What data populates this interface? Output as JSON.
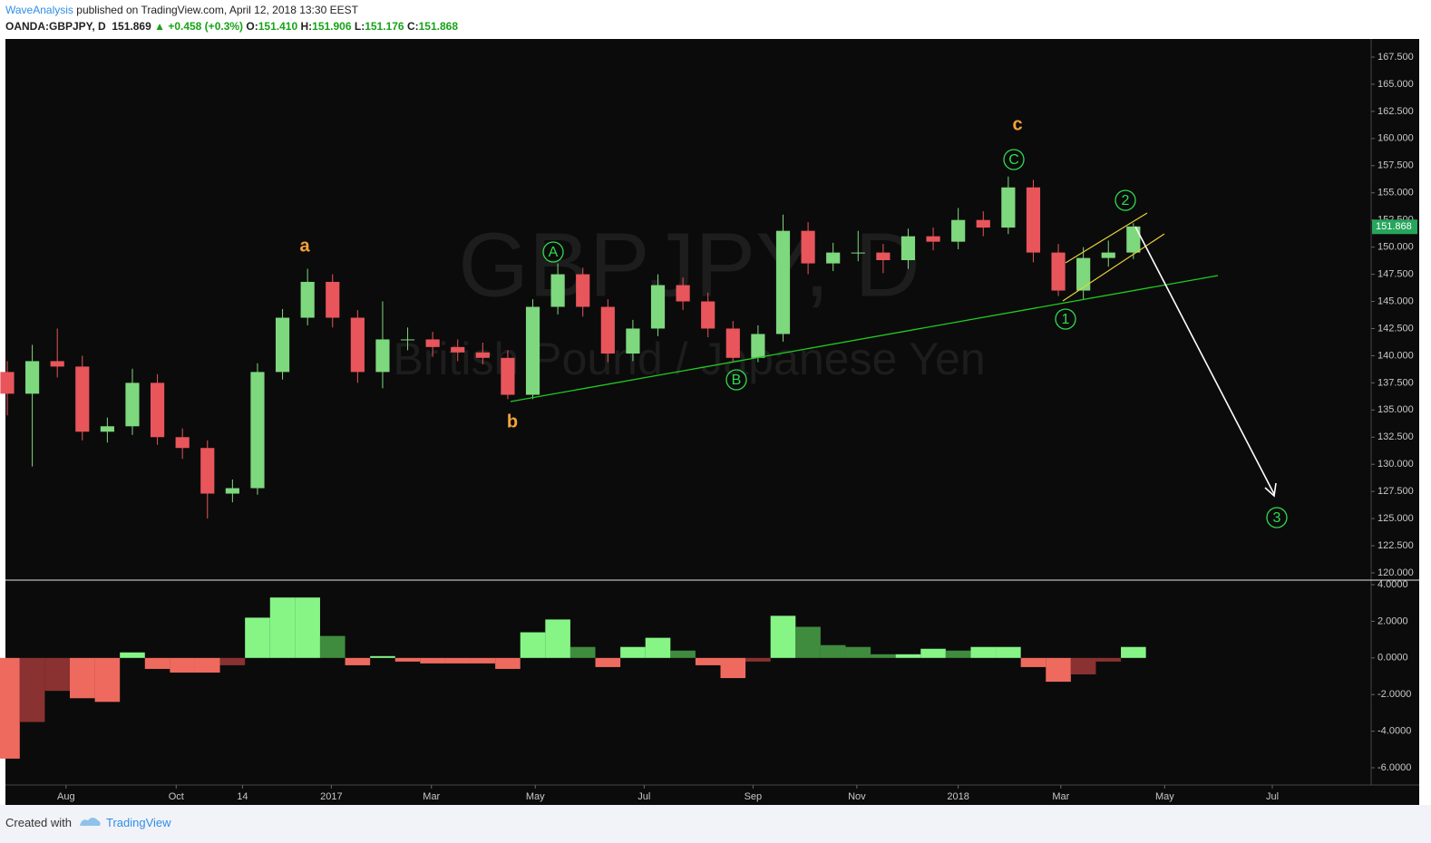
{
  "header": {
    "author": "WaveAnalysis",
    "published": "published on TradingView.com, April 12, 2018 13:30 EEST",
    "symbol": "OANDA:GBPJPY, D",
    "last": "151.869",
    "change": "+0.458 (+0.3%)",
    "o_label": "O:",
    "open": "151.410",
    "h_label": "H:",
    "high": "151.906",
    "l_label": "L:",
    "low": "151.176",
    "c_label": "C:",
    "close": "151.868"
  },
  "watermark": {
    "title": "GBPJPY, D",
    "subtitle": "British Pound / Japanese Yen"
  },
  "annotations": {
    "a": "a",
    "b": "b",
    "c": "c",
    "A": "A",
    "B": "B",
    "C": "C",
    "w1": "1",
    "w2": "2",
    "w3": "3"
  },
  "footer": {
    "created": "Created with",
    "brand": "TradingView"
  },
  "chart_data": [
    {
      "type": "candlestick",
      "x": [
        0,
        2,
        4,
        6,
        8,
        10,
        12,
        14,
        16,
        18,
        20,
        22,
        24,
        26,
        28,
        30,
        32,
        34,
        36,
        38,
        40,
        42,
        44,
        46,
        48,
        50,
        52,
        54,
        56,
        58,
        60,
        62,
        64,
        66,
        68,
        70,
        72,
        74,
        76,
        78,
        80,
        82,
        84,
        86,
        88,
        90
      ],
      "open": [
        138.5,
        136.5,
        139.5,
        139,
        133,
        133.5,
        137.5,
        132.5,
        131.5,
        127.3,
        127.8,
        138.5,
        143.5,
        146.8,
        143.5,
        138.5,
        141.5,
        141.5,
        140.8,
        140.3,
        139.8,
        136.4,
        144.5,
        147.5,
        144.5,
        140.2,
        142.5,
        146.5,
        145,
        142.5,
        139.8,
        142,
        151.5,
        148.5,
        149.5,
        149.5,
        148.8,
        151,
        150.5,
        152.5,
        151.8,
        155.5,
        149.5,
        146,
        149,
        149.5
      ],
      "high": [
        139.5,
        141,
        142.5,
        140,
        134.3,
        138.8,
        138.3,
        133.3,
        132.2,
        128.6,
        139.3,
        144.3,
        148,
        147.5,
        144.2,
        145,
        142.6,
        142.2,
        141.5,
        141.2,
        140.5,
        145.2,
        148.5,
        148.1,
        145.2,
        143.3,
        147.5,
        147.2,
        145.8,
        143.2,
        142.8,
        153,
        152.3,
        150.4,
        151.5,
        150.3,
        151.7,
        151.8,
        153.6,
        153.3,
        156.5,
        156.2,
        150.3,
        150,
        150.6,
        152.2
      ],
      "low": [
        134.5,
        129.8,
        138,
        132.2,
        132,
        132.7,
        131.8,
        130.5,
        125,
        126.5,
        127.2,
        137.8,
        142.8,
        142.6,
        137.5,
        137,
        140.5,
        139.9,
        139.5,
        139.2,
        136,
        136,
        143.8,
        143.6,
        139.4,
        139.5,
        141.8,
        144.2,
        141.7,
        139.5,
        139.4,
        141.3,
        147.5,
        147.8,
        148.7,
        147.6,
        148,
        149.7,
        149.8,
        151,
        151.2,
        148.6,
        145.5,
        145.2,
        148.2,
        148.9
      ],
      "close": [
        136.5,
        139.5,
        139,
        133,
        133.5,
        137.5,
        132.5,
        131.5,
        127.3,
        127.8,
        138.5,
        143.5,
        146.8,
        143.5,
        138.5,
        141.5,
        141.5,
        140.8,
        140.3,
        139.8,
        136.4,
        144.5,
        147.5,
        144.5,
        140.2,
        142.5,
        146.5,
        145,
        142.5,
        139.8,
        142,
        151.5,
        148.5,
        149.5,
        149.5,
        148.8,
        151,
        150.5,
        152.5,
        151.8,
        155.5,
        149.5,
        146,
        149,
        149.5,
        151.9
      ],
      "up_color": "#7ed87e",
      "down_color": "#e8555b",
      "xlim": [
        0,
        109
      ],
      "ylim": [
        119.33,
        169.17
      ],
      "yticks": [
        {
          "value": 120,
          "label": "120.000"
        },
        {
          "value": 122.5,
          "label": "122.500"
        },
        {
          "value": 125,
          "label": "125.000"
        },
        {
          "value": 127.5,
          "label": "127.500"
        },
        {
          "value": 130,
          "label": "130.000"
        },
        {
          "value": 132.5,
          "label": "132.500"
        },
        {
          "value": 135,
          "label": "135.000"
        },
        {
          "value": 137.5,
          "label": "137.500"
        },
        {
          "value": 140,
          "label": "140.000"
        },
        {
          "value": 142.5,
          "label": "142.500"
        },
        {
          "value": 145,
          "label": "145.000"
        },
        {
          "value": 147.5,
          "label": "147.500"
        },
        {
          "value": 150,
          "label": "150.000"
        },
        {
          "value": 152.5,
          "label": "152.500"
        },
        {
          "value": 155,
          "label": "155.000"
        },
        {
          "value": 157.5,
          "label": "157.500"
        },
        {
          "value": 160,
          "label": "160.000"
        },
        {
          "value": 162.5,
          "label": "162.500"
        },
        {
          "value": 165,
          "label": "165.000"
        },
        {
          "value": 167.5,
          "label": "167.500"
        }
      ],
      "price_tag": {
        "value": 151.868,
        "label": "151.868",
        "color": "#26a65b"
      }
    },
    {
      "type": "histogram",
      "x": [
        0,
        2,
        4,
        6,
        8,
        10,
        12,
        14,
        16,
        18,
        20,
        22,
        24,
        26,
        28,
        30,
        32,
        34,
        36,
        38,
        40,
        42,
        44,
        46,
        48,
        50,
        52,
        54,
        56,
        58,
        60,
        62,
        64,
        66,
        68,
        70,
        72,
        74,
        76,
        78,
        80,
        82,
        84,
        86,
        88,
        90
      ],
      "values": [
        -5.5,
        -3.5,
        -1.8,
        -2.2,
        -2.4,
        0.3,
        -0.6,
        -0.8,
        -0.8,
        -0.4,
        2.2,
        3.3,
        3.3,
        1.2,
        -0.4,
        0.1,
        -0.2,
        -0.3,
        -0.3,
        -0.3,
        -0.6,
        1.4,
        2.1,
        0.6,
        -0.5,
        0.6,
        1.1,
        0.4,
        -0.4,
        -1.1,
        -0.2,
        2.3,
        1.7,
        0.7,
        0.6,
        0.2,
        0.2,
        0.5,
        0.4,
        0.6,
        0.6,
        -0.5,
        -1.3,
        -0.9,
        -0.2,
        0.6
      ],
      "colors": {
        "pos_up": "#86f586",
        "pos_down": "#3f8c3f",
        "neg_down": "#ef6a5e",
        "neg_up": "#8a3131"
      },
      "xlim": [
        0,
        109
      ],
      "ylim": [
        -6.94,
        4.2
      ],
      "yticks": [
        {
          "value": 4,
          "label": "4.0000"
        },
        {
          "value": 2,
          "label": "2.0000"
        },
        {
          "value": 0,
          "label": "0.0000"
        },
        {
          "value": -2,
          "label": "-2.0000"
        },
        {
          "value": -4,
          "label": "-4.0000"
        },
        {
          "value": -6,
          "label": "-6.0000"
        }
      ],
      "xticks": [
        {
          "value": 4.7,
          "label": "Aug"
        },
        {
          "value": 13.5,
          "label": "Oct"
        },
        {
          "value": 18.8,
          "label": "14"
        },
        {
          "value": 25.9,
          "label": "2017"
        },
        {
          "value": 33.9,
          "label": "Mar"
        },
        {
          "value": 42.2,
          "label": "May"
        },
        {
          "value": 50.9,
          "label": "Jul"
        },
        {
          "value": 59.6,
          "label": "Sep"
        },
        {
          "value": 67.9,
          "label": "Nov"
        },
        {
          "value": 76,
          "label": "2018"
        },
        {
          "value": 84.2,
          "label": "Mar"
        },
        {
          "value": 92.5,
          "label": "May"
        },
        {
          "value": 101.1,
          "label": "Jul"
        }
      ]
    }
  ]
}
